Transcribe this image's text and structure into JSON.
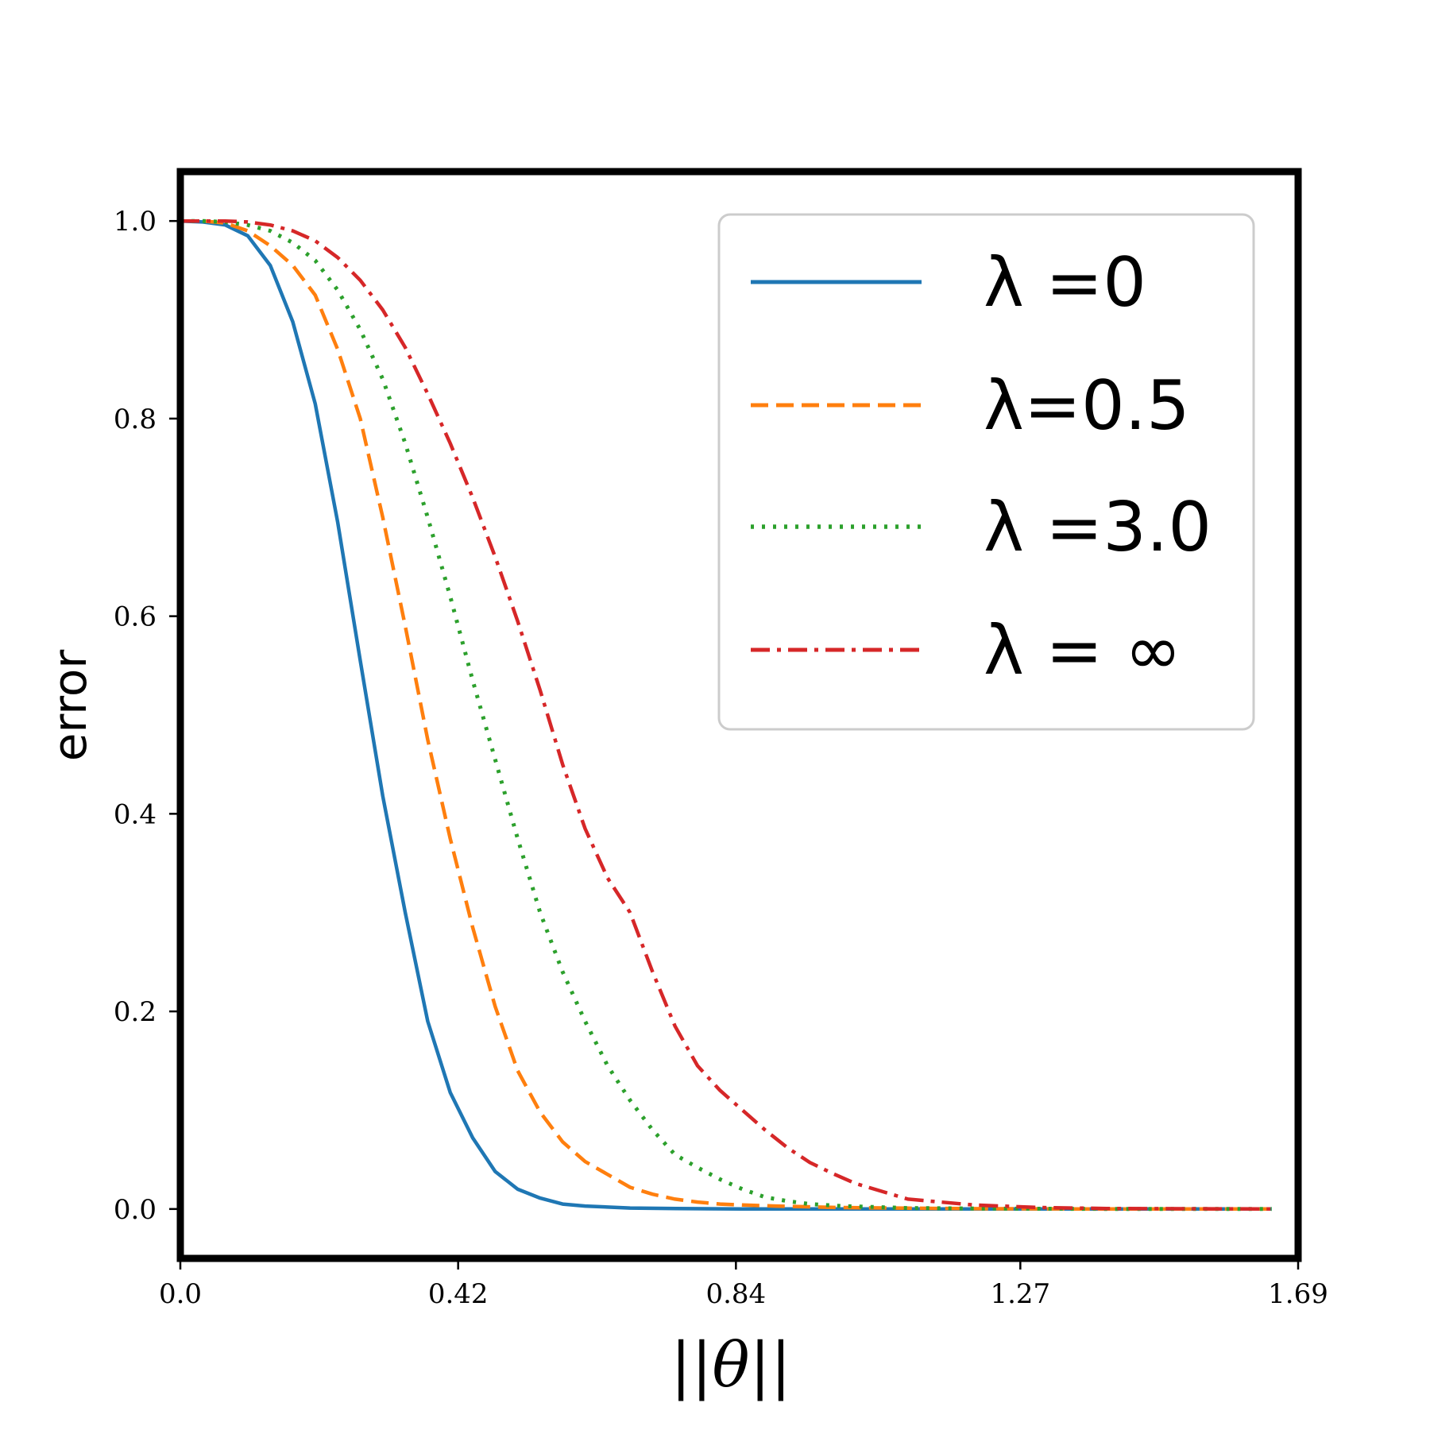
{
  "chart_data": {
    "type": "line",
    "title": "",
    "xlabel": "||θ||",
    "ylabel": "error",
    "xlim": [
      0,
      1.69
    ],
    "ylim": [
      -0.05,
      1.05
    ],
    "xticks": [
      0.0,
      0.42,
      0.84,
      1.27,
      1.69
    ],
    "xtick_labels": [
      "0.0",
      "0.42",
      "0.84",
      "1.27",
      "1.69"
    ],
    "yticks": [
      0.0,
      0.2,
      0.4,
      0.6,
      0.8,
      1.0
    ],
    "ytick_labels": [
      "0.0",
      "0.2",
      "0.4",
      "0.6",
      "0.8",
      "1.0"
    ],
    "grid": false,
    "legend_position": "top-right",
    "series": [
      {
        "name": "λ =0",
        "color": "#1f77b4",
        "style": "solid",
        "x": [
          0,
          0.034,
          0.068,
          0.102,
          0.136,
          0.17,
          0.204,
          0.238,
          0.272,
          0.306,
          0.34,
          0.374,
          0.408,
          0.442,
          0.476,
          0.51,
          0.544,
          0.578,
          0.612,
          0.68,
          0.75,
          0.85,
          1.0,
          1.2,
          1.4,
          1.65
        ],
        "values": [
          1.0,
          0.999,
          0.996,
          0.985,
          0.955,
          0.898,
          0.815,
          0.695,
          0.555,
          0.418,
          0.3,
          0.19,
          0.118,
          0.072,
          0.038,
          0.02,
          0.011,
          0.005,
          0.003,
          0.001,
          0.0004,
          0.0001,
          0.0,
          0.0,
          0.0,
          0.0
        ]
      },
      {
        "name": "λ=0.5",
        "color": "#ff7f0e",
        "style": "dashed",
        "x": [
          0,
          0.034,
          0.068,
          0.102,
          0.136,
          0.17,
          0.204,
          0.238,
          0.272,
          0.306,
          0.34,
          0.374,
          0.408,
          0.442,
          0.476,
          0.51,
          0.544,
          0.578,
          0.612,
          0.646,
          0.68,
          0.714,
          0.748,
          0.782,
          0.816,
          0.85,
          0.9,
          1.0,
          1.1,
          1.2,
          1.4,
          1.65
        ],
        "values": [
          1.0,
          1.0,
          0.998,
          0.99,
          0.975,
          0.955,
          0.925,
          0.87,
          0.8,
          0.7,
          0.59,
          0.475,
          0.375,
          0.285,
          0.205,
          0.14,
          0.098,
          0.068,
          0.048,
          0.035,
          0.022,
          0.015,
          0.01,
          0.007,
          0.005,
          0.004,
          0.003,
          0.0015,
          0.0008,
          0.0003,
          0.0,
          0.0
        ]
      },
      {
        "name": "λ =3.0",
        "color": "#2ca02c",
        "style": "dotted",
        "x": [
          0,
          0.034,
          0.068,
          0.102,
          0.136,
          0.17,
          0.204,
          0.238,
          0.272,
          0.306,
          0.34,
          0.374,
          0.408,
          0.442,
          0.476,
          0.51,
          0.544,
          0.578,
          0.612,
          0.646,
          0.68,
          0.714,
          0.748,
          0.782,
          0.816,
          0.85,
          0.884,
          0.918,
          0.952,
          1.0,
          1.1,
          1.2,
          1.4,
          1.65
        ],
        "values": [
          1.0,
          1.0,
          0.999,
          0.996,
          0.99,
          0.978,
          0.96,
          0.93,
          0.89,
          0.84,
          0.775,
          0.7,
          0.62,
          0.535,
          0.455,
          0.375,
          0.3,
          0.24,
          0.19,
          0.145,
          0.11,
          0.08,
          0.055,
          0.042,
          0.03,
          0.02,
          0.012,
          0.008,
          0.005,
          0.003,
          0.001,
          0.0005,
          0.0001,
          0.0
        ]
      },
      {
        "name": "λ = ∞",
        "color": "#d62728",
        "style": "dashdot",
        "x": [
          0,
          0.034,
          0.068,
          0.102,
          0.136,
          0.17,
          0.204,
          0.238,
          0.272,
          0.306,
          0.34,
          0.374,
          0.408,
          0.442,
          0.476,
          0.51,
          0.544,
          0.578,
          0.612,
          0.646,
          0.68,
          0.714,
          0.748,
          0.782,
          0.816,
          0.85,
          0.884,
          0.918,
          0.952,
          0.986,
          1.02,
          1.1,
          1.2,
          1.3,
          1.4,
          1.65
        ],
        "values": [
          1.0,
          1.0,
          1.0,
          0.999,
          0.996,
          0.99,
          0.98,
          0.963,
          0.94,
          0.91,
          0.872,
          0.825,
          0.775,
          0.72,
          0.66,
          0.595,
          0.525,
          0.45,
          0.385,
          0.335,
          0.3,
          0.24,
          0.185,
          0.145,
          0.12,
          0.1,
          0.08,
          0.062,
          0.047,
          0.036,
          0.026,
          0.01,
          0.004,
          0.0015,
          0.0005,
          0.0
        ]
      }
    ]
  }
}
